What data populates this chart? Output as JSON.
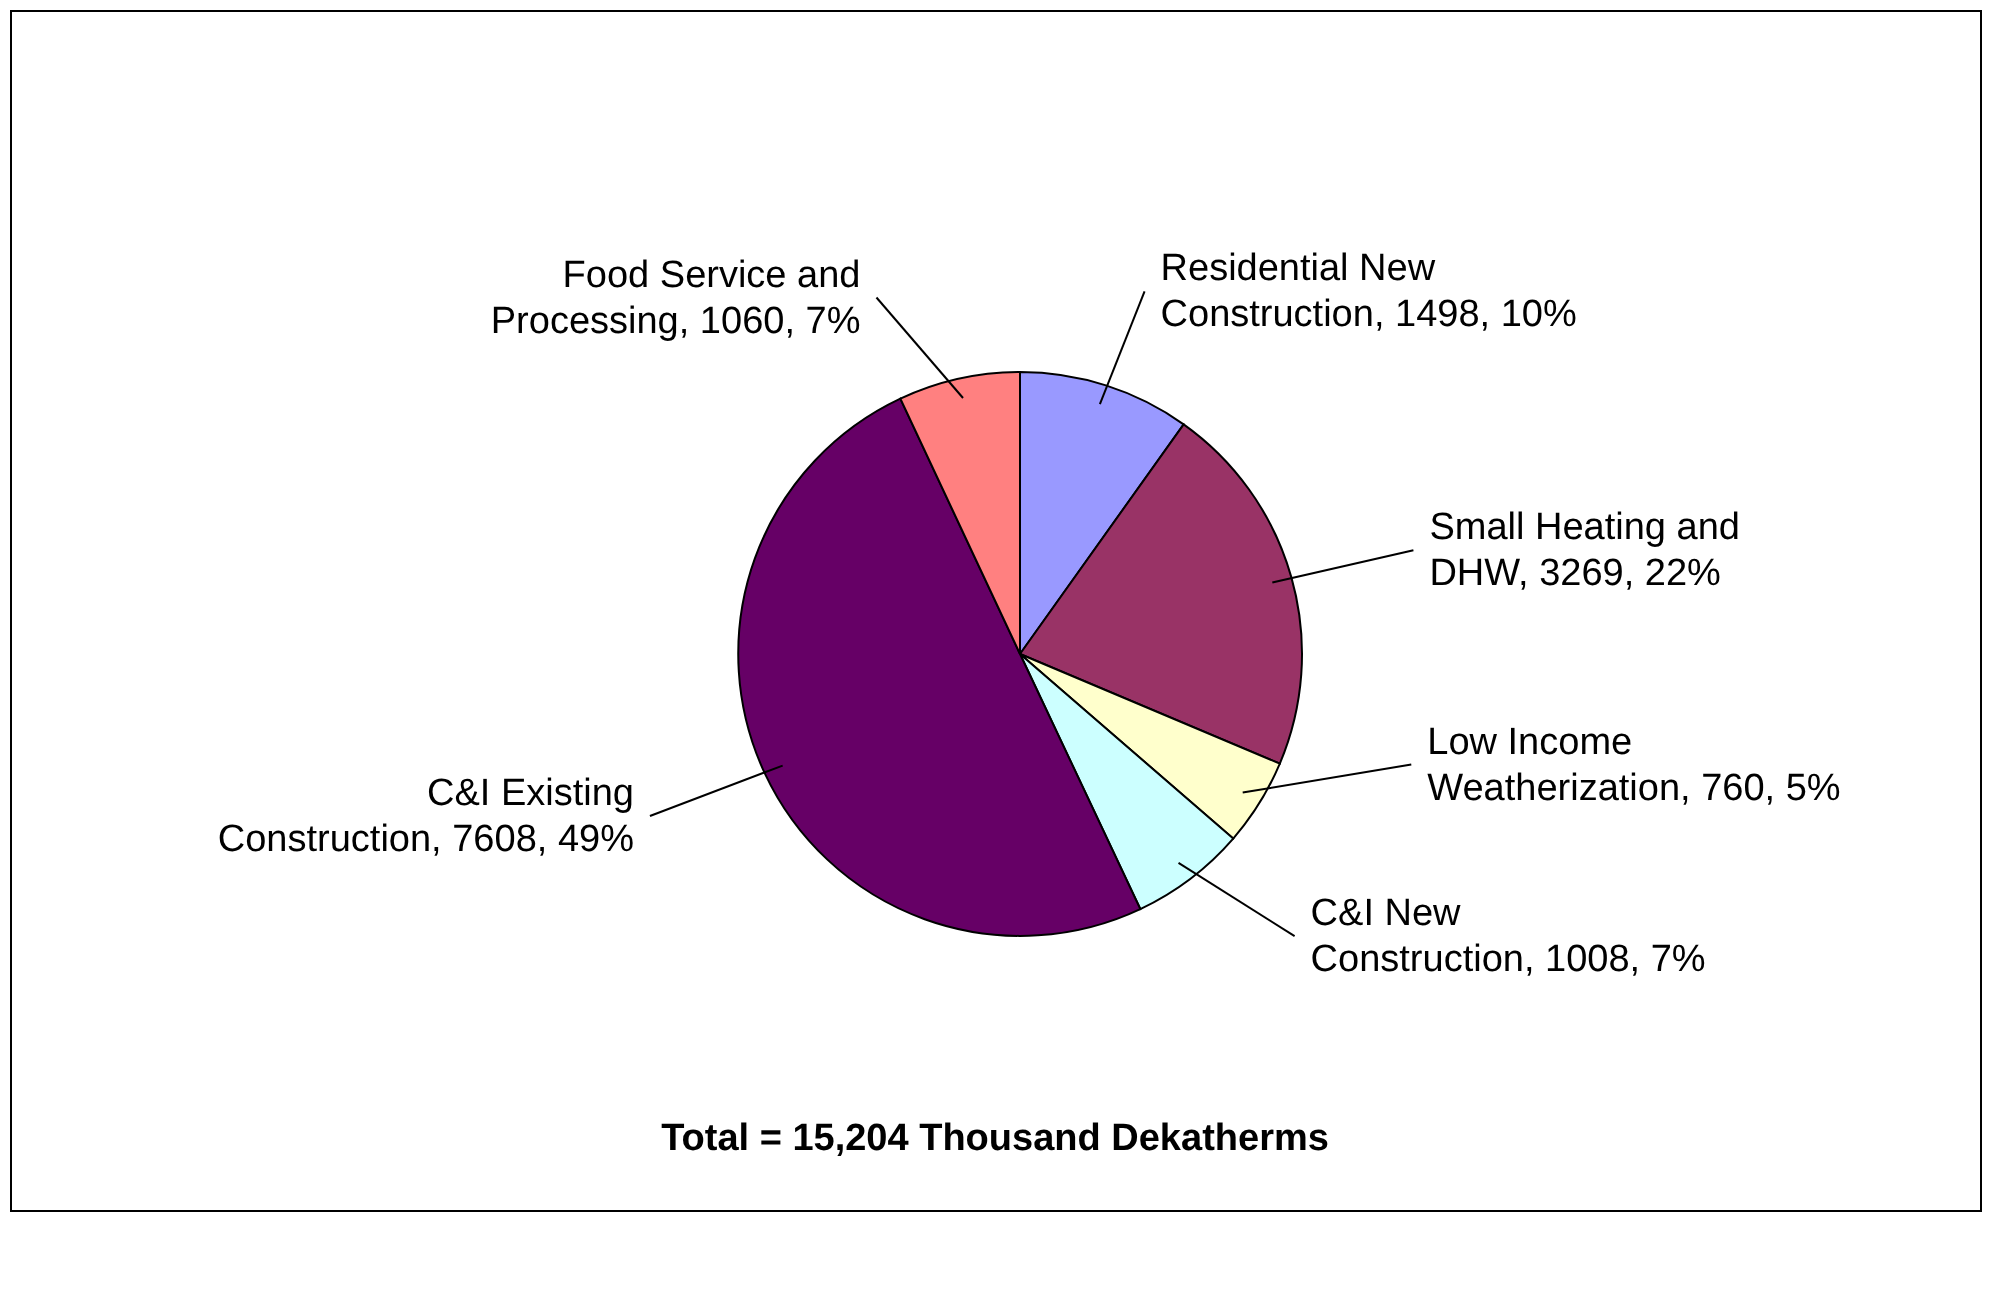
{
  "chart_data": {
    "type": "pie",
    "title": "Total = 15,204 Thousand Dekatherms",
    "categories": [
      "Residential New Construction",
      "Small Heating and DHW",
      "Low Income Weatherization",
      "C&I New Construction",
      "C&I Existing Construction",
      "Food Service and Processing"
    ],
    "values": [
      1498,
      3269,
      760,
      1008,
      7608,
      1060
    ],
    "colors": [
      "#9999ff",
      "#993366",
      "#ffffcc",
      "#ccffff",
      "#660066",
      "#ff8080"
    ],
    "value_labels": [
      "1498, 10%",
      "3269, 22%",
      "760, 5%",
      "1008, 7%",
      "7608, 49%",
      "1060, 7%"
    ]
  }
}
